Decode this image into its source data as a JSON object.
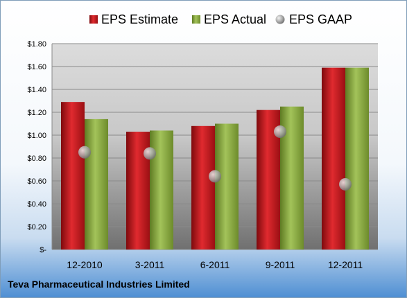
{
  "company": "Teva Pharmaceutical Industries Limited",
  "colors": {
    "estimate": "#c8161b",
    "actual": "#86a83c",
    "gaap": "#a8a8a8"
  },
  "chart_data": {
    "type": "bar",
    "title": "",
    "xlabel": "",
    "ylabel": "",
    "categories": [
      "12-2010",
      "3-2011",
      "6-2011",
      "9-2011",
      "12-2011"
    ],
    "ylim": [
      0,
      1.8
    ],
    "yticks": [
      0,
      0.2,
      0.4,
      0.6,
      0.8,
      1.0,
      1.2,
      1.4,
      1.6,
      1.8
    ],
    "ytick_labels": [
      "$-",
      "$0.20",
      "$0.40",
      "$0.60",
      "$0.80",
      "$1.00",
      "$1.20",
      "$1.40",
      "$1.60",
      "$1.80"
    ],
    "grid": true,
    "legend_position": "top",
    "series": [
      {
        "name": "EPS Estimate",
        "kind": "bar",
        "values": [
          1.29,
          1.03,
          1.08,
          1.22,
          1.59
        ]
      },
      {
        "name": "EPS Actual",
        "kind": "bar",
        "values": [
          1.14,
          1.04,
          1.1,
          1.25,
          1.59
        ]
      },
      {
        "name": "EPS GAAP",
        "kind": "marker",
        "values": [
          0.85,
          0.84,
          0.64,
          1.03,
          0.57
        ]
      }
    ]
  }
}
